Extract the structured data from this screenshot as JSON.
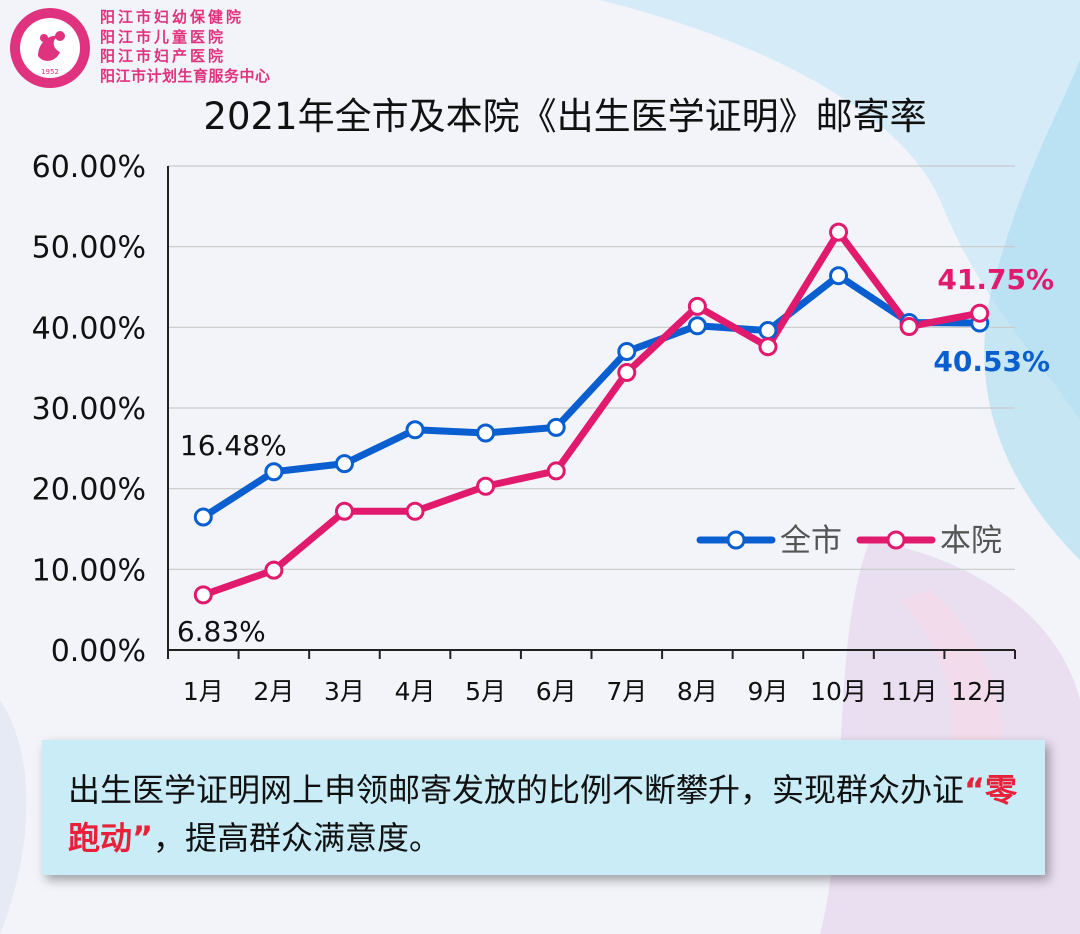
{
  "header": {
    "org_lines": [
      "阳江市妇幼保健院",
      "阳江市儿童医院",
      "阳江市妇产医院",
      "阳江市计划生育服务中心"
    ],
    "logo_text": "阳江市妇幼保健院",
    "logo_year": "1952"
  },
  "colors": {
    "city": "#0a5fd0",
    "hospital": "#e11a6e",
    "org": "#e0337f",
    "note_bg": "#c9ecf6",
    "highlight": "#e8203a"
  },
  "chart_data": {
    "type": "line",
    "title": "2021年全市及本院《出生医学证明》邮寄率",
    "categories": [
      "1月",
      "2月",
      "3月",
      "4月",
      "5月",
      "6月",
      "7月",
      "8月",
      "9月",
      "10月",
      "11月",
      "12月"
    ],
    "series": [
      {
        "name": "全市",
        "values": [
          16.48,
          22.1,
          23.1,
          27.3,
          26.9,
          27.6,
          37.0,
          40.2,
          39.6,
          46.4,
          40.6,
          40.53
        ]
      },
      {
        "name": "本院",
        "values": [
          6.83,
          9.9,
          17.2,
          17.2,
          20.3,
          22.2,
          34.4,
          42.6,
          37.6,
          51.8,
          40.1,
          41.75
        ]
      }
    ],
    "yticks": [
      "0.00%",
      "10.00%",
      "20.00%",
      "30.00%",
      "40.00%",
      "50.00%",
      "60.00%"
    ],
    "ylim": [
      0,
      60
    ],
    "annotations": [
      {
        "text": "16.48%",
        "series": 0,
        "index": 0
      },
      {
        "text": "6.83%",
        "series": 1,
        "index": 0
      },
      {
        "text": "40.53%",
        "series": 0,
        "index": 11
      },
      {
        "text": "41.75%",
        "series": 1,
        "index": 11
      }
    ],
    "legend": "right-center",
    "grid": true
  },
  "note": {
    "text_a": "出生医学证明网上申领邮寄发放的比例不断攀升，实现群众办证",
    "highlight": "“零跑动”",
    "text_b": "，提高群众满意度。"
  }
}
